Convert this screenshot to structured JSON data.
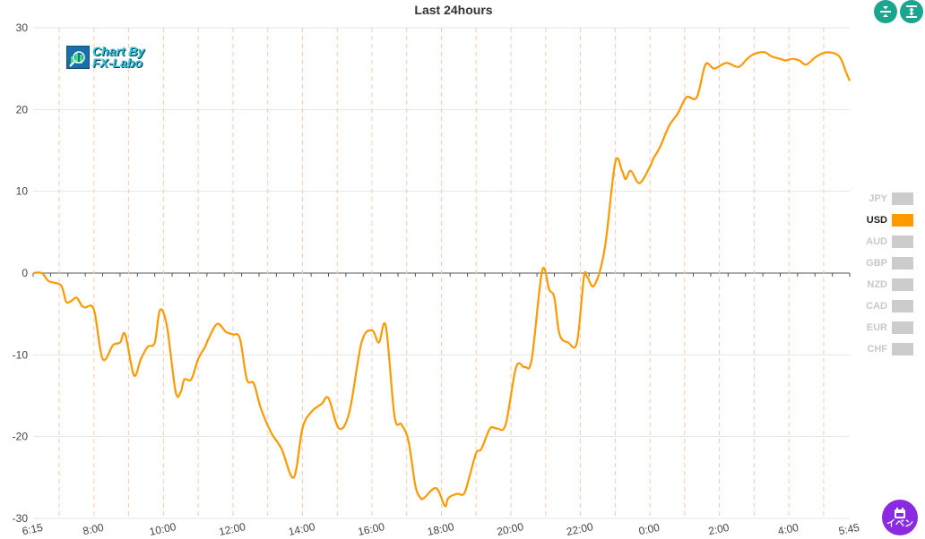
{
  "chart_data": {
    "type": "line",
    "title": "Last 24hours",
    "xlabel": "",
    "ylabel": "",
    "ylim": [
      -30,
      30
    ],
    "yticks": [
      "30",
      "20",
      "10",
      "0",
      "-10",
      "-20",
      "-30"
    ],
    "xtick_labels": [
      "6:15",
      "8:00",
      "10:00",
      "12:00",
      "14:00",
      "16:00",
      "18:00",
      "20:00",
      "22:00",
      "0:00",
      "2:00",
      "4:00",
      "5:45"
    ],
    "xtick_hours": [
      0,
      1.75,
      3.75,
      5.75,
      7.75,
      9.75,
      11.75,
      13.75,
      15.75,
      17.75,
      19.75,
      21.75,
      23.5
    ],
    "grid": true,
    "legend_position": "right",
    "series": [
      {
        "name": "USD",
        "color": "#ff9900",
        "x": [
          0,
          0.25,
          0.45,
          0.8,
          0.95,
          1.1,
          1.25,
          1.4,
          1.5,
          1.75,
          2.0,
          2.3,
          2.5,
          2.65,
          2.9,
          3.1,
          3.3,
          3.5,
          3.65,
          3.85,
          4.1,
          4.25,
          4.35,
          4.55,
          4.75,
          4.95,
          5.05,
          5.3,
          5.55,
          5.75,
          5.95,
          6.15,
          6.35,
          6.55,
          6.85,
          7.15,
          7.5,
          7.75,
          8.0,
          8.3,
          8.5,
          8.8,
          9.1,
          9.45,
          9.75,
          9.95,
          10.15,
          10.4,
          10.6,
          10.8,
          11.0,
          11.15,
          11.25,
          11.6,
          11.85,
          11.95,
          12.2,
          12.4,
          12.55,
          12.75,
          12.9,
          13.15,
          13.35,
          13.6,
          13.9,
          14.15,
          14.35,
          14.65,
          14.85,
          15.0,
          15.15,
          15.4,
          15.65,
          15.85,
          15.95,
          16.15,
          16.45,
          16.75,
          16.95,
          17.05,
          17.2,
          17.45,
          17.75,
          17.85,
          18.05,
          18.3,
          18.55,
          18.8,
          19.1,
          19.35,
          19.6,
          19.95,
          20.3,
          20.55,
          20.75,
          21.05,
          21.25,
          21.5,
          21.65,
          21.85,
          22.05,
          22.25,
          22.55,
          22.85,
          23.2,
          23.4,
          23.5
        ],
        "values": [
          0,
          0,
          -1,
          -1.5,
          -3.5,
          -3.4,
          -3,
          -4,
          -4.2,
          -4.5,
          -10.5,
          -8.8,
          -8.5,
          -7.5,
          -12.5,
          -10.5,
          -9,
          -8.5,
          -4.5,
          -6.5,
          -14.5,
          -14.5,
          -13,
          -13,
          -10.5,
          -9,
          -8,
          -6.2,
          -7.2,
          -7.5,
          -8,
          -13,
          -13.5,
          -16.5,
          -19.5,
          -21.5,
          -25,
          -19,
          -17,
          -16,
          -15.3,
          -19,
          -17,
          -8.5,
          -7,
          -8.5,
          -6.5,
          -17.5,
          -18.5,
          -20.5,
          -26,
          -27.5,
          -27.5,
          -26.3,
          -28.5,
          -27.5,
          -27,
          -27,
          -25,
          -22,
          -21.5,
          -19,
          -19,
          -18.5,
          -11.5,
          -11.5,
          -10.5,
          0.3,
          -2,
          -3,
          -7.5,
          -8.5,
          -8.5,
          -0.5,
          -0.5,
          -1.5,
          3,
          13.5,
          12.5,
          11.5,
          12.5,
          11,
          13,
          14,
          15.5,
          18,
          19.5,
          21.5,
          21.5,
          25.5,
          25,
          25.7,
          25.2,
          26.2,
          26.8,
          27,
          26.5,
          26.2,
          26,
          26.2,
          26,
          25.5,
          26.5,
          27,
          26.5,
          24.5,
          23.5
        ]
      },
      {
        "name": "JPY",
        "color": "#cccccc",
        "hidden": true
      },
      {
        "name": "AUD",
        "color": "#cccccc",
        "hidden": true
      },
      {
        "name": "GBP",
        "color": "#cccccc",
        "hidden": true
      },
      {
        "name": "NZD",
        "color": "#cccccc",
        "hidden": true
      },
      {
        "name": "CAD",
        "color": "#cccccc",
        "hidden": true
      },
      {
        "name": "EUR",
        "color": "#cccccc",
        "hidden": true
      },
      {
        "name": "CHF",
        "color": "#cccccc",
        "hidden": true
      }
    ]
  },
  "legend": {
    "items": [
      {
        "label": "JPY",
        "active": false
      },
      {
        "label": "USD",
        "active": true
      },
      {
        "label": "AUD",
        "active": false
      },
      {
        "label": "GBP",
        "active": false
      },
      {
        "label": "NZD",
        "active": false
      },
      {
        "label": "CAD",
        "active": false
      },
      {
        "label": "EUR",
        "active": false
      },
      {
        "label": "CHF",
        "active": false
      }
    ]
  },
  "logo": {
    "line1": "Chart By",
    "line2": "FX-Labo"
  },
  "toolbar": {
    "collapse_icon": "collapse-vertical-icon",
    "expand_icon": "expand-vertical-icon"
  },
  "event_button": {
    "label": "イベン",
    "icon": "calendar-icon"
  },
  "colors": {
    "accent": "#ff9900",
    "grid": "#e6e6e6",
    "vgrid": "#f6c9b0",
    "button": "#1aa58e",
    "event": "#8a2be2"
  }
}
